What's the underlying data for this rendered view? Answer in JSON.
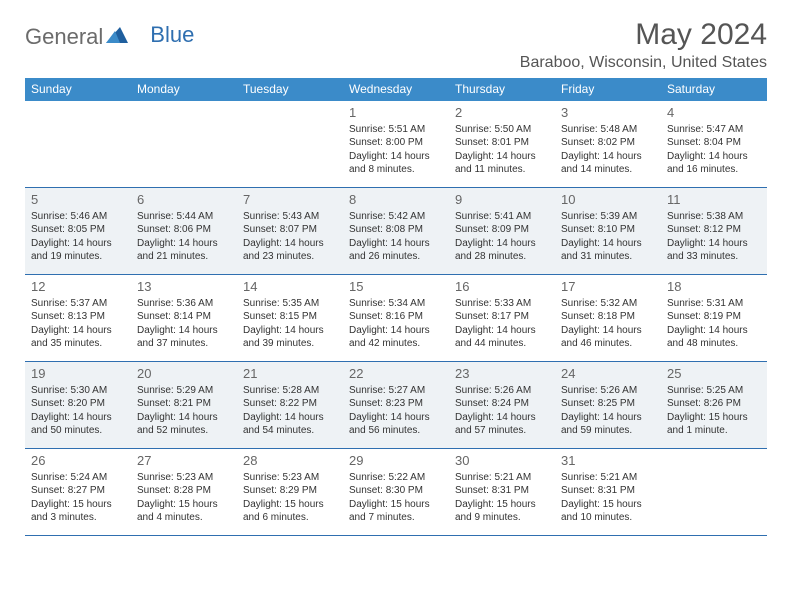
{
  "brand": {
    "part1": "General",
    "part2": "Blue"
  },
  "title": "May 2024",
  "location": "Baraboo, Wisconsin, United States",
  "colors": {
    "header_bg": "#3b8bc9",
    "header_text": "#ffffff",
    "border": "#2f6fb0",
    "alt_row_bg": "#eef2f5",
    "logo_gray": "#6b6b6b",
    "logo_blue": "#2f6fb0",
    "title_color": "#555555"
  },
  "day_names": [
    "Sunday",
    "Monday",
    "Tuesday",
    "Wednesday",
    "Thursday",
    "Friday",
    "Saturday"
  ],
  "weeks": [
    {
      "alt": false,
      "days": [
        {
          "n": "",
          "lines": []
        },
        {
          "n": "",
          "lines": []
        },
        {
          "n": "",
          "lines": []
        },
        {
          "n": "1",
          "lines": [
            "Sunrise: 5:51 AM",
            "Sunset: 8:00 PM",
            "Daylight: 14 hours",
            "and 8 minutes."
          ]
        },
        {
          "n": "2",
          "lines": [
            "Sunrise: 5:50 AM",
            "Sunset: 8:01 PM",
            "Daylight: 14 hours",
            "and 11 minutes."
          ]
        },
        {
          "n": "3",
          "lines": [
            "Sunrise: 5:48 AM",
            "Sunset: 8:02 PM",
            "Daylight: 14 hours",
            "and 14 minutes."
          ]
        },
        {
          "n": "4",
          "lines": [
            "Sunrise: 5:47 AM",
            "Sunset: 8:04 PM",
            "Daylight: 14 hours",
            "and 16 minutes."
          ]
        }
      ]
    },
    {
      "alt": true,
      "days": [
        {
          "n": "5",
          "lines": [
            "Sunrise: 5:46 AM",
            "Sunset: 8:05 PM",
            "Daylight: 14 hours",
            "and 19 minutes."
          ]
        },
        {
          "n": "6",
          "lines": [
            "Sunrise: 5:44 AM",
            "Sunset: 8:06 PM",
            "Daylight: 14 hours",
            "and 21 minutes."
          ]
        },
        {
          "n": "7",
          "lines": [
            "Sunrise: 5:43 AM",
            "Sunset: 8:07 PM",
            "Daylight: 14 hours",
            "and 23 minutes."
          ]
        },
        {
          "n": "8",
          "lines": [
            "Sunrise: 5:42 AM",
            "Sunset: 8:08 PM",
            "Daylight: 14 hours",
            "and 26 minutes."
          ]
        },
        {
          "n": "9",
          "lines": [
            "Sunrise: 5:41 AM",
            "Sunset: 8:09 PM",
            "Daylight: 14 hours",
            "and 28 minutes."
          ]
        },
        {
          "n": "10",
          "lines": [
            "Sunrise: 5:39 AM",
            "Sunset: 8:10 PM",
            "Daylight: 14 hours",
            "and 31 minutes."
          ]
        },
        {
          "n": "11",
          "lines": [
            "Sunrise: 5:38 AM",
            "Sunset: 8:12 PM",
            "Daylight: 14 hours",
            "and 33 minutes."
          ]
        }
      ]
    },
    {
      "alt": false,
      "days": [
        {
          "n": "12",
          "lines": [
            "Sunrise: 5:37 AM",
            "Sunset: 8:13 PM",
            "Daylight: 14 hours",
            "and 35 minutes."
          ]
        },
        {
          "n": "13",
          "lines": [
            "Sunrise: 5:36 AM",
            "Sunset: 8:14 PM",
            "Daylight: 14 hours",
            "and 37 minutes."
          ]
        },
        {
          "n": "14",
          "lines": [
            "Sunrise: 5:35 AM",
            "Sunset: 8:15 PM",
            "Daylight: 14 hours",
            "and 39 minutes."
          ]
        },
        {
          "n": "15",
          "lines": [
            "Sunrise: 5:34 AM",
            "Sunset: 8:16 PM",
            "Daylight: 14 hours",
            "and 42 minutes."
          ]
        },
        {
          "n": "16",
          "lines": [
            "Sunrise: 5:33 AM",
            "Sunset: 8:17 PM",
            "Daylight: 14 hours",
            "and 44 minutes."
          ]
        },
        {
          "n": "17",
          "lines": [
            "Sunrise: 5:32 AM",
            "Sunset: 8:18 PM",
            "Daylight: 14 hours",
            "and 46 minutes."
          ]
        },
        {
          "n": "18",
          "lines": [
            "Sunrise: 5:31 AM",
            "Sunset: 8:19 PM",
            "Daylight: 14 hours",
            "and 48 minutes."
          ]
        }
      ]
    },
    {
      "alt": true,
      "days": [
        {
          "n": "19",
          "lines": [
            "Sunrise: 5:30 AM",
            "Sunset: 8:20 PM",
            "Daylight: 14 hours",
            "and 50 minutes."
          ]
        },
        {
          "n": "20",
          "lines": [
            "Sunrise: 5:29 AM",
            "Sunset: 8:21 PM",
            "Daylight: 14 hours",
            "and 52 minutes."
          ]
        },
        {
          "n": "21",
          "lines": [
            "Sunrise: 5:28 AM",
            "Sunset: 8:22 PM",
            "Daylight: 14 hours",
            "and 54 minutes."
          ]
        },
        {
          "n": "22",
          "lines": [
            "Sunrise: 5:27 AM",
            "Sunset: 8:23 PM",
            "Daylight: 14 hours",
            "and 56 minutes."
          ]
        },
        {
          "n": "23",
          "lines": [
            "Sunrise: 5:26 AM",
            "Sunset: 8:24 PM",
            "Daylight: 14 hours",
            "and 57 minutes."
          ]
        },
        {
          "n": "24",
          "lines": [
            "Sunrise: 5:26 AM",
            "Sunset: 8:25 PM",
            "Daylight: 14 hours",
            "and 59 minutes."
          ]
        },
        {
          "n": "25",
          "lines": [
            "Sunrise: 5:25 AM",
            "Sunset: 8:26 PM",
            "Daylight: 15 hours",
            "and 1 minute."
          ]
        }
      ]
    },
    {
      "alt": false,
      "days": [
        {
          "n": "26",
          "lines": [
            "Sunrise: 5:24 AM",
            "Sunset: 8:27 PM",
            "Daylight: 15 hours",
            "and 3 minutes."
          ]
        },
        {
          "n": "27",
          "lines": [
            "Sunrise: 5:23 AM",
            "Sunset: 8:28 PM",
            "Daylight: 15 hours",
            "and 4 minutes."
          ]
        },
        {
          "n": "28",
          "lines": [
            "Sunrise: 5:23 AM",
            "Sunset: 8:29 PM",
            "Daylight: 15 hours",
            "and 6 minutes."
          ]
        },
        {
          "n": "29",
          "lines": [
            "Sunrise: 5:22 AM",
            "Sunset: 8:30 PM",
            "Daylight: 15 hours",
            "and 7 minutes."
          ]
        },
        {
          "n": "30",
          "lines": [
            "Sunrise: 5:21 AM",
            "Sunset: 8:31 PM",
            "Daylight: 15 hours",
            "and 9 minutes."
          ]
        },
        {
          "n": "31",
          "lines": [
            "Sunrise: 5:21 AM",
            "Sunset: 8:31 PM",
            "Daylight: 15 hours",
            "and 10 minutes."
          ]
        },
        {
          "n": "",
          "lines": []
        }
      ]
    }
  ]
}
